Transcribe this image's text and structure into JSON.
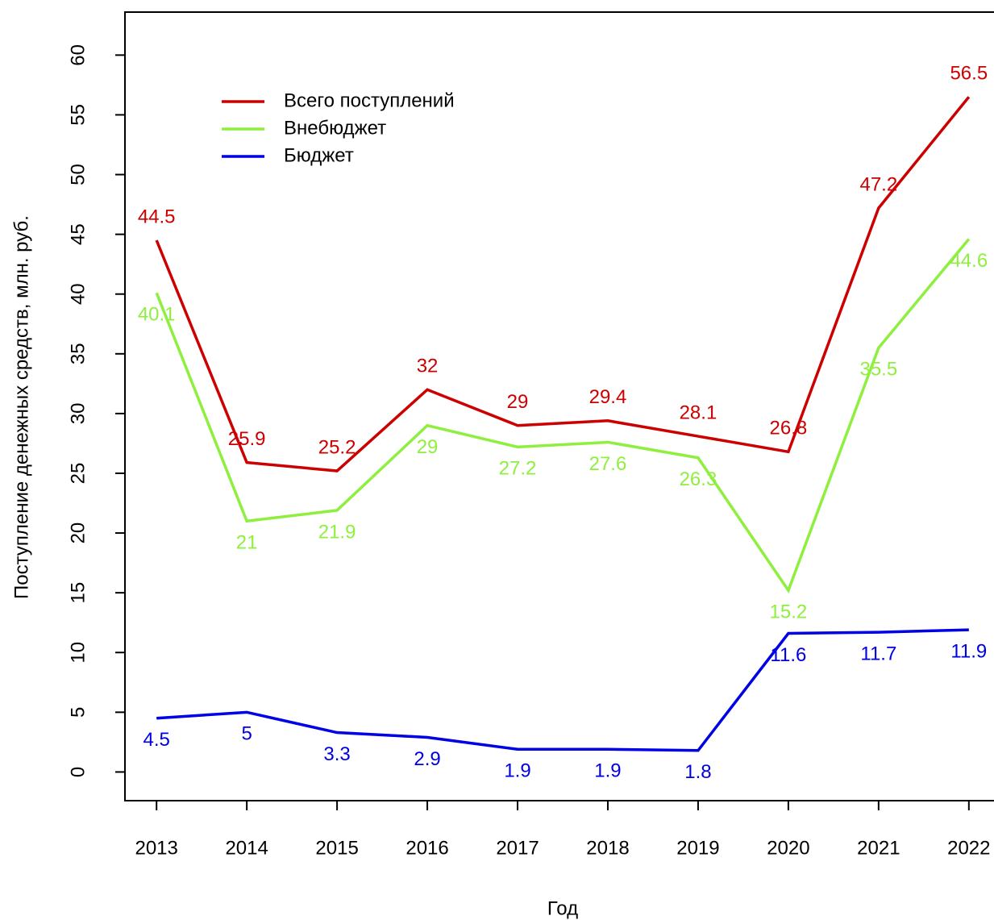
{
  "chart_data": {
    "type": "line",
    "xlabel": "Год",
    "ylabel": "Поступление денежных средств, млн. руб.",
    "x": [
      2013,
      2014,
      2015,
      2016,
      2017,
      2018,
      2019,
      2020,
      2021,
      2022
    ],
    "series": [
      {
        "name": "Всего поступлений",
        "color": "#cc0000",
        "values": [
          44.5,
          25.9,
          25.2,
          32,
          29,
          29.4,
          28.1,
          26.8,
          47.2,
          56.5
        ]
      },
      {
        "name": "Внебюджет",
        "color": "#8fef3f",
        "values": [
          40.1,
          21,
          21.9,
          29,
          27.2,
          27.6,
          26.3,
          15.2,
          35.5,
          44.6
        ]
      },
      {
        "name": "Бюджет",
        "color": "#0000e6",
        "values": [
          4.5,
          5,
          3.3,
          2.9,
          1.9,
          1.9,
          1.8,
          11.6,
          11.7,
          11.9
        ]
      }
    ],
    "xlim": [
      2012.65,
      2022.35
    ],
    "xticks": [
      2013,
      2014,
      2015,
      2016,
      2017,
      2018,
      2019,
      2020,
      2021,
      2022
    ],
    "ylim": [
      -2.4,
      63.6
    ],
    "yticks": [
      0,
      5,
      10,
      15,
      20,
      25,
      30,
      35,
      40,
      45,
      50,
      55,
      60
    ],
    "legend": "topleft",
    "data_labels": true
  }
}
